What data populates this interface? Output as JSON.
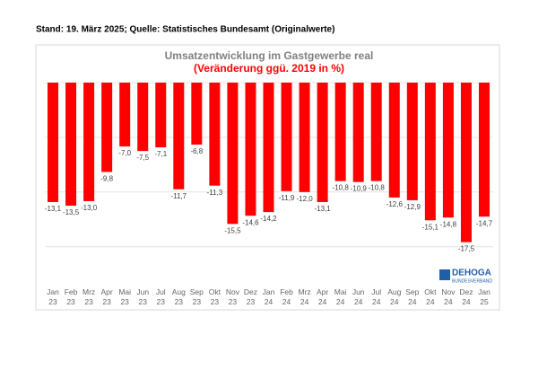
{
  "header": "Stand: 19. März 2025; Quelle: Statistisches Bundesamt (Originalwerte)",
  "logo": {
    "name": "DEHOGA",
    "sub": "BUNDESVERBAND"
  },
  "chart_data": {
    "type": "bar",
    "title": "Umsatzentwicklung im Gastgewerbe real",
    "subtitle": "(Veränderung ggü. 2019 in %)",
    "categories": [
      "Jan 23",
      "Feb 23",
      "Mrz 23",
      "Apr 23",
      "Mai 23",
      "Jun 23",
      "Jul 23",
      "Aug 23",
      "Sep 23",
      "Okt 23",
      "Nov 23",
      "Dez 23",
      "Jan 24",
      "Feb 24",
      "Mrz 24",
      "Apr 24",
      "Mai 24",
      "Jun 24",
      "Jul 24",
      "Aug 24",
      "Sep 24",
      "Okt 24",
      "Nov 24",
      "Dez 24",
      "Jan 25"
    ],
    "values": [
      -13.1,
      -13.5,
      -13.0,
      -9.8,
      -7.0,
      -7.5,
      -7.1,
      -11.7,
      -6.8,
      -11.3,
      -15.5,
      -14.6,
      -14.2,
      -11.9,
      -12.0,
      -13.1,
      -10.8,
      -10.9,
      -10.8,
      -12.6,
      -12.9,
      -15.1,
      -14.8,
      -17.5,
      -14.7
    ],
    "value_labels": [
      "-13,1",
      "-13,5",
      "-13,0",
      "-9,8",
      "-7,0",
      "-7,5",
      "-7,1",
      "-11,7",
      "-6,8",
      "-11,3",
      "-15,5",
      "-14,6",
      "-14,2",
      "-11,9",
      "-12,0",
      "-13,1",
      "-10,8",
      "-10,9",
      "-10,8",
      "-12,6",
      "-12,9",
      "-15,1",
      "-14,8",
      "-17,5",
      "-14,7"
    ],
    "color": "#ff0000",
    "ylim": [
      -20,
      0
    ],
    "yticks": [
      -18,
      -12,
      -6,
      0
    ],
    "grid": true
  }
}
